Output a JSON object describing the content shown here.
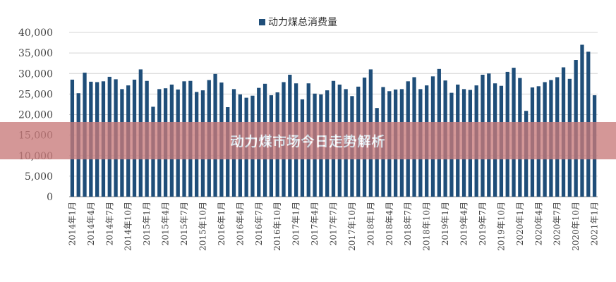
{
  "banner": {
    "title": "动力煤市场今日走势解析",
    "color": "#c87a7a",
    "opacity": 0.78
  },
  "chart_data": {
    "type": "bar",
    "series": [
      {
        "name": "动力煤总消费量",
        "color": "#1f4e79",
        "values": [
          28500,
          25200,
          30200,
          28000,
          27900,
          28100,
          29200,
          28600,
          26200,
          27100,
          28500,
          31000,
          28200,
          21900,
          26200,
          26400,
          27300,
          26100,
          28100,
          28200,
          25500,
          25900,
          28400,
          29900,
          27800,
          21800,
          26200,
          24900,
          24100,
          24600,
          26500,
          27500,
          24700,
          25400,
          27900,
          29700,
          27600,
          23700,
          27600,
          25100,
          24900,
          25900,
          28200,
          27300,
          26200,
          24500,
          26800,
          29000,
          31000,
          21600,
          26700,
          25700,
          26100,
          26200,
          28100,
          29100,
          26200,
          27100,
          29300,
          31100,
          28300,
          25300,
          27300,
          26200,
          26000,
          27100,
          29700,
          30000,
          27600,
          27000,
          30400,
          31400,
          28900,
          20900,
          26600,
          26900,
          27900,
          28400,
          29100,
          31500,
          28700,
          33300,
          37000,
          35300,
          24700
        ]
      }
    ],
    "x_tick_labels": [
      "2014年1月",
      "2014年4月",
      "2014年7月",
      "2014年10月",
      "2015年1月",
      "2015年4月",
      "2015年7月",
      "2015年10月",
      "2016年1月",
      "2016年4月",
      "2016年7月",
      "2016年10月",
      "2017年1月",
      "2017年4月",
      "2017年7月",
      "2017年10月",
      "2018年1月",
      "2018年4月",
      "2018年7月",
      "2018年10月",
      "2019年1月",
      "2019年4月",
      "2019年7月",
      "2019年10月",
      "2020年1月",
      "2020年4月",
      "2020年7月",
      "2020年10月",
      "2021年1月"
    ],
    "y_tick_labels": [
      "0",
      "5,000",
      "10,000",
      "15,000",
      "20,000",
      "25,000",
      "30,000",
      "35,000",
      "40,000"
    ],
    "ylim": [
      0,
      40000
    ],
    "grid": true,
    "legend_position": "top-center",
    "title": "",
    "xlabel": "",
    "ylabel": ""
  }
}
